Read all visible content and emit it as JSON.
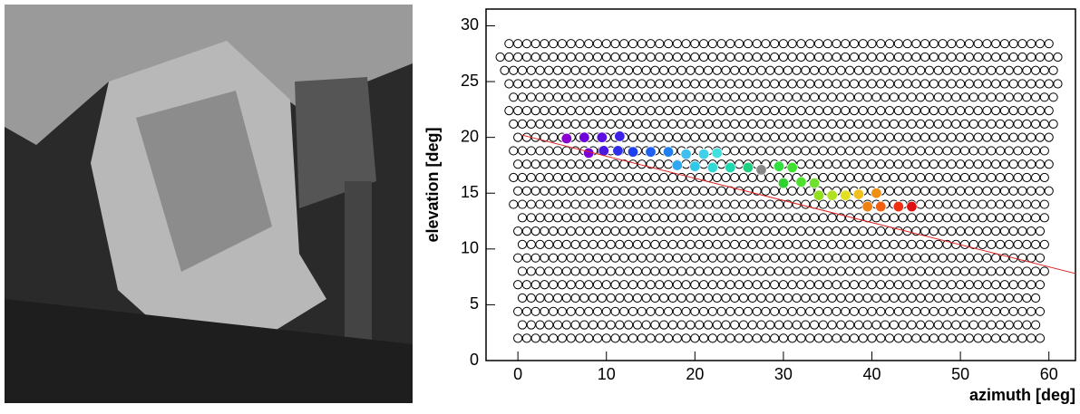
{
  "chart_data": {
    "type": "scatter",
    "xlabel": "azimuth  [deg]",
    "ylabel": "elevation  [deg]",
    "xlim": [
      -3.6,
      63
    ],
    "ylim": [
      0,
      31.5
    ],
    "xticks": [
      0,
      10,
      20,
      30,
      40,
      50,
      60
    ],
    "yticks": [
      0,
      5,
      10,
      15,
      20,
      25,
      30
    ],
    "pixel_rows": {
      "y": [
        2.0,
        3.2,
        4.4,
        5.6,
        6.8,
        8.0,
        9.2,
        10.4,
        11.6,
        12.8,
        14.0,
        15.2,
        16.4,
        17.6,
        18.8,
        20.0,
        21.2,
        22.4,
        23.6,
        24.8,
        26.0,
        27.2,
        28.4
      ],
      "x_start": [
        0,
        0.5,
        0,
        0.5,
        0,
        0.5,
        0,
        0.5,
        0,
        0.5,
        -0.5,
        0,
        -0.5,
        0,
        -0.5,
        0,
        -0.5,
        -1,
        -0.5,
        -1,
        -1.5,
        -2,
        -1
      ],
      "x_end": [
        59,
        58.5,
        59,
        58.5,
        59,
        59.5,
        59,
        59.5,
        59,
        59.5,
        59.5,
        60,
        59.5,
        60,
        59.5,
        60,
        60.5,
        60,
        60.5,
        61,
        60.5,
        61,
        60.5
      ],
      "spacing": 1.0,
      "color": "#000000"
    },
    "points": {
      "x": [
        5.5,
        7.5,
        9.5,
        11.5,
        8,
        9.7,
        11.3,
        13,
        15,
        17,
        18,
        19,
        21,
        22.5,
        20,
        22,
        24,
        26,
        27.5,
        29.5,
        31,
        30,
        32,
        33.5,
        34,
        35.5,
        37,
        38.5,
        40.5,
        39.5,
        41,
        43,
        44.5
      ],
      "y": [
        19.9,
        20,
        20,
        20.1,
        18.6,
        18.8,
        18.8,
        18.7,
        18.7,
        18.7,
        17.5,
        18.5,
        18.5,
        18.6,
        17.4,
        17.3,
        17.3,
        17.3,
        17.1,
        17.4,
        17.3,
        15.9,
        16,
        15.9,
        14.8,
        14.8,
        14.8,
        14.9,
        15,
        13.8,
        13.8,
        13.8,
        13.8
      ],
      "colors": [
        "#8a00d0",
        "#7000d8",
        "#5a10e0",
        "#3a20e8",
        "#7a00d8",
        "#4a18e0",
        "#3030e8",
        "#2040f0",
        "#2060f0",
        "#2080f0",
        "#30a8f0",
        "#40c0f0",
        "#40d0e8",
        "#40e0e0",
        "#30c8e8",
        "#30d8d8",
        "#20d8b0",
        "#20d080",
        "#888888",
        "#30e040",
        "#40e030",
        "#30d030",
        "#50e030",
        "#70e030",
        "#90e020",
        "#b0e020",
        "#e0e020",
        "#f0c020",
        "#f09010",
        "#f08010",
        "#f06010",
        "#f03010",
        "#e01010"
      ]
    },
    "fit_line": {
      "x": [
        0.5,
        63
      ],
      "y": [
        20.2,
        7.8
      ],
      "color": "#e02020"
    }
  }
}
